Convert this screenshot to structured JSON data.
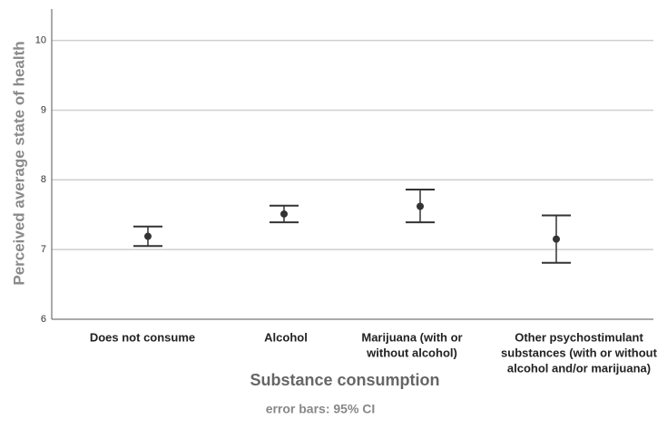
{
  "chart_data": {
    "type": "errorbar",
    "y_label": "Perceived average state of health",
    "x_label": "Substance consumption",
    "note": "error bars: 95% CI",
    "categories": [
      [
        "Does not consume"
      ],
      [
        "Alcohol"
      ],
      [
        "Marijuana (with or",
        "without alcohol)"
      ],
      [
        "Other psychostimulant",
        "substances (with or without",
        "alcohol and/or marijuana)"
      ]
    ],
    "series": [
      {
        "color": "#333333",
        "values": [
          7.19,
          7.51,
          7.62,
          7.15
        ],
        "ci_low": [
          7.05,
          7.39,
          7.39,
          6.81
        ],
        "ci_high": [
          7.33,
          7.63,
          7.86,
          7.49
        ]
      }
    ],
    "ylim": [
      6,
      10.45
    ],
    "yticks": [
      6,
      7,
      8,
      9,
      10
    ],
    "grid": true
  }
}
